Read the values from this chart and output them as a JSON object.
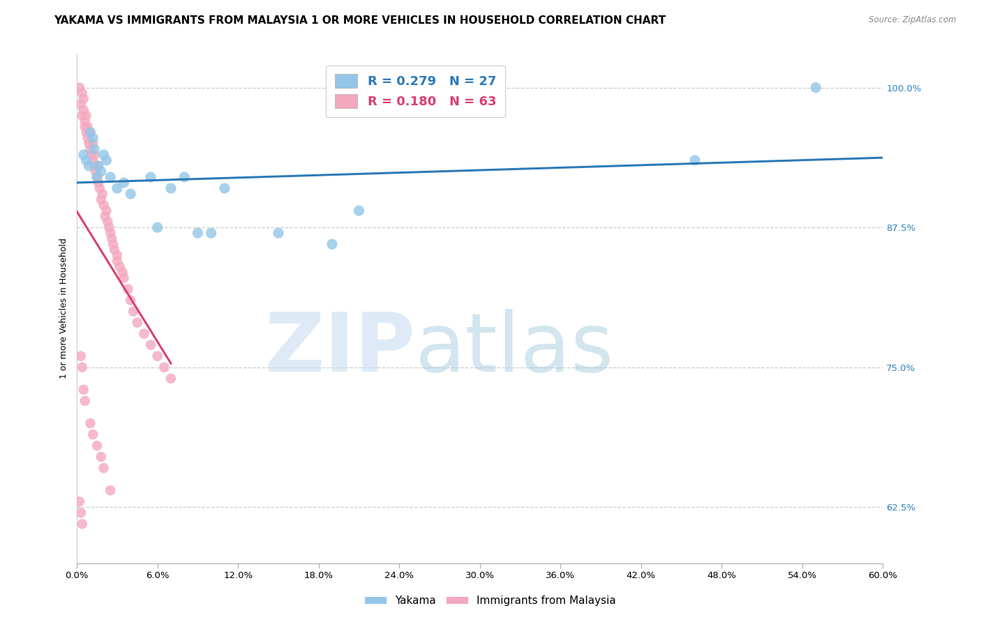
{
  "title": "YAKAMA VS IMMIGRANTS FROM MALAYSIA 1 OR MORE VEHICLES IN HOUSEHOLD CORRELATION CHART",
  "source": "Source: ZipAtlas.com",
  "ylabel": "1 or more Vehicles in Household",
  "ytick_labels": [
    "100.0%",
    "87.5%",
    "75.0%",
    "62.5%"
  ],
  "ytick_values": [
    1.0,
    0.875,
    0.75,
    0.625
  ],
  "xlim": [
    0.0,
    0.6
  ],
  "ylim": [
    0.575,
    1.03
  ],
  "yakama_x": [
    0.005,
    0.007,
    0.009,
    0.01,
    0.012,
    0.013,
    0.015,
    0.016,
    0.018,
    0.02,
    0.022,
    0.025,
    0.03,
    0.035,
    0.04,
    0.055,
    0.06,
    0.07,
    0.08,
    0.09,
    0.1,
    0.11,
    0.15,
    0.19,
    0.21,
    0.46,
    0.55
  ],
  "yakama_y": [
    0.94,
    0.935,
    0.93,
    0.96,
    0.955,
    0.945,
    0.92,
    0.93,
    0.925,
    0.94,
    0.935,
    0.92,
    0.91,
    0.915,
    0.905,
    0.92,
    0.875,
    0.91,
    0.92,
    0.87,
    0.87,
    0.91,
    0.87,
    0.86,
    0.89,
    0.935,
    1.0
  ],
  "malaysia_x": [
    0.002,
    0.003,
    0.004,
    0.004,
    0.005,
    0.005,
    0.006,
    0.006,
    0.007,
    0.007,
    0.008,
    0.008,
    0.009,
    0.01,
    0.01,
    0.011,
    0.012,
    0.012,
    0.013,
    0.013,
    0.014,
    0.015,
    0.015,
    0.016,
    0.017,
    0.018,
    0.019,
    0.02,
    0.021,
    0.022,
    0.023,
    0.024,
    0.025,
    0.026,
    0.027,
    0.028,
    0.03,
    0.03,
    0.032,
    0.034,
    0.035,
    0.038,
    0.04,
    0.042,
    0.045,
    0.05,
    0.055,
    0.06,
    0.065,
    0.07,
    0.003,
    0.004,
    0.005,
    0.006,
    0.01,
    0.012,
    0.015,
    0.018,
    0.02,
    0.025,
    0.002,
    0.003,
    0.004
  ],
  "malaysia_y": [
    1.0,
    0.985,
    0.995,
    0.975,
    0.98,
    0.99,
    0.97,
    0.965,
    0.96,
    0.975,
    0.955,
    0.965,
    0.95,
    0.945,
    0.96,
    0.94,
    0.95,
    0.935,
    0.93,
    0.94,
    0.925,
    0.92,
    0.93,
    0.915,
    0.91,
    0.9,
    0.905,
    0.895,
    0.885,
    0.89,
    0.88,
    0.875,
    0.87,
    0.865,
    0.86,
    0.855,
    0.845,
    0.85,
    0.84,
    0.835,
    0.83,
    0.82,
    0.81,
    0.8,
    0.79,
    0.78,
    0.77,
    0.76,
    0.75,
    0.74,
    0.76,
    0.75,
    0.73,
    0.72,
    0.7,
    0.69,
    0.68,
    0.67,
    0.66,
    0.64,
    0.63,
    0.62,
    0.61
  ],
  "blue_color": "#93c6e8",
  "pink_color": "#f4a8be",
  "blue_line_color": "#2c7ab8",
  "pink_line_color": "#d94070",
  "title_fontsize": 11,
  "axis_label_fontsize": 9,
  "tick_fontsize": 9.5,
  "legend_fontsize": 12,
  "watermark_zip_color": "#c8dff0",
  "watermark_atlas_color": "#a8cce0"
}
